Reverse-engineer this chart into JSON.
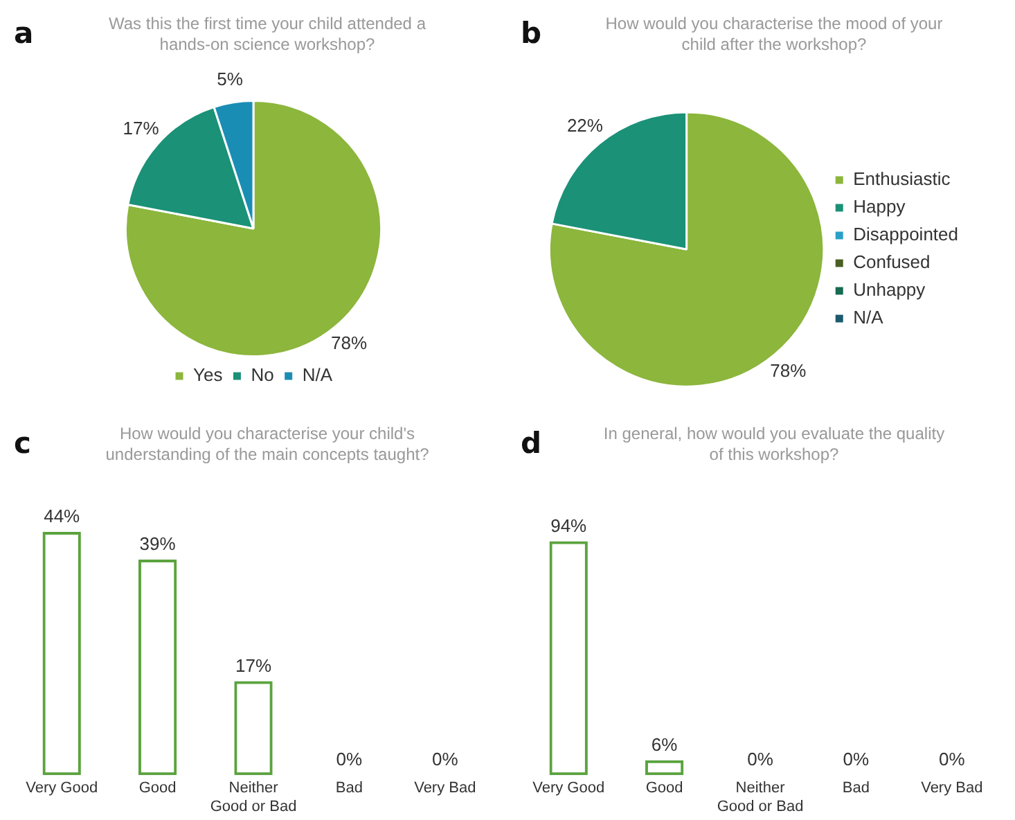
{
  "chart_data": [
    {
      "type": "pie",
      "title": "Was this the first time your child attended a hands-on science workshop?",
      "annotations": [
        "a"
      ],
      "categories": [
        "Yes",
        "No",
        "N/A"
      ],
      "values": [
        78,
        17,
        5
      ],
      "colors": [
        "#8cb63c",
        "#1b9177",
        "#1a8db5"
      ],
      "value_labels": [
        "78%",
        "17%",
        "5%"
      ],
      "legend": "bottom"
    },
    {
      "type": "pie",
      "title": "How would you characterise the mood of your child after the workshop?",
      "annotations": [
        "b"
      ],
      "categories": [
        "Enthusiastic",
        "Happy",
        "Disappointed",
        "Confused",
        "Unhappy",
        "N/A"
      ],
      "values": [
        78,
        22,
        0,
        0,
        0,
        0
      ],
      "colors": [
        "#8cb63c",
        "#1b9177",
        "#2aa0c8",
        "#4b5f24",
        "#176b50",
        "#1b5a6e"
      ],
      "value_labels": [
        "78%",
        "22%",
        null,
        null,
        null,
        null
      ],
      "legend": "right"
    },
    {
      "type": "bar",
      "title": "How would you characterise your child's understanding of the main concepts taught?",
      "annotations": [
        "c"
      ],
      "categories": [
        "Very Good",
        "Good",
        "Neither Good or Bad",
        "Bad",
        "Very Bad"
      ],
      "values": [
        44,
        39,
        17,
        0,
        0
      ],
      "color": "#5aa33e",
      "value_labels": [
        "44%",
        "39%",
        "17%",
        "0%",
        "0%"
      ],
      "tick_labels": "x",
      "grid": false,
      "legend": false
    },
    {
      "type": "bar",
      "title": "In general, how would you evaluate the quality of this workshop?",
      "annotations": [
        "d"
      ],
      "categories": [
        "Very Good",
        "Good",
        "Neither Good or Bad",
        "Bad",
        "Very Bad"
      ],
      "values": [
        94,
        6,
        0,
        0,
        0
      ],
      "color": "#5aa33e",
      "value_labels": [
        "94%",
        "6%",
        "0%",
        "0%",
        "0%"
      ],
      "tick_labels": "x",
      "grid": false,
      "legend": false
    }
  ]
}
